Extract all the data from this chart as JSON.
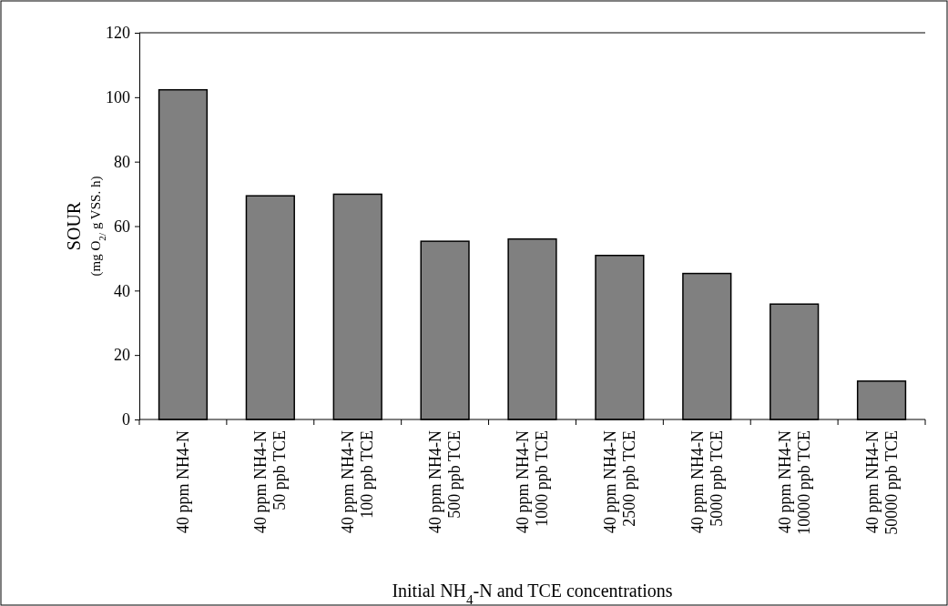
{
  "chart_data": {
    "type": "bar",
    "xlabel": "Initial NH$_{4}$-N and TCE concentrations",
    "ylabel": "SOUR\n(mg O$_{2/}$ g VSS. h)",
    "categories": [
      "40 ppm NH4-N",
      "40 ppm NH4-N\n50 ppb TCE",
      "40 ppm NH4-N\n100 ppb TCE",
      "40 ppm NH4-N\n500 ppb TCE",
      "40 ppm NH4-N\n1000 ppb TCE",
      "40 ppm NH4-N\n2500 ppb TCE",
      "40 ppm NH4-N\n5000 ppb TCE",
      "40 ppm NH4-N\n10000 ppb TCE",
      "40 ppm NH4-N\n50000 ppb TCE"
    ],
    "values": [
      102.3,
      69.4,
      69.9,
      55.3,
      56.0,
      50.9,
      45.3,
      35.8,
      11.9
    ],
    "color": "#808080",
    "ylim": [
      0,
      120
    ],
    "yticks": [
      0,
      20,
      40,
      60,
      80,
      100,
      120
    ],
    "grid": false
  }
}
